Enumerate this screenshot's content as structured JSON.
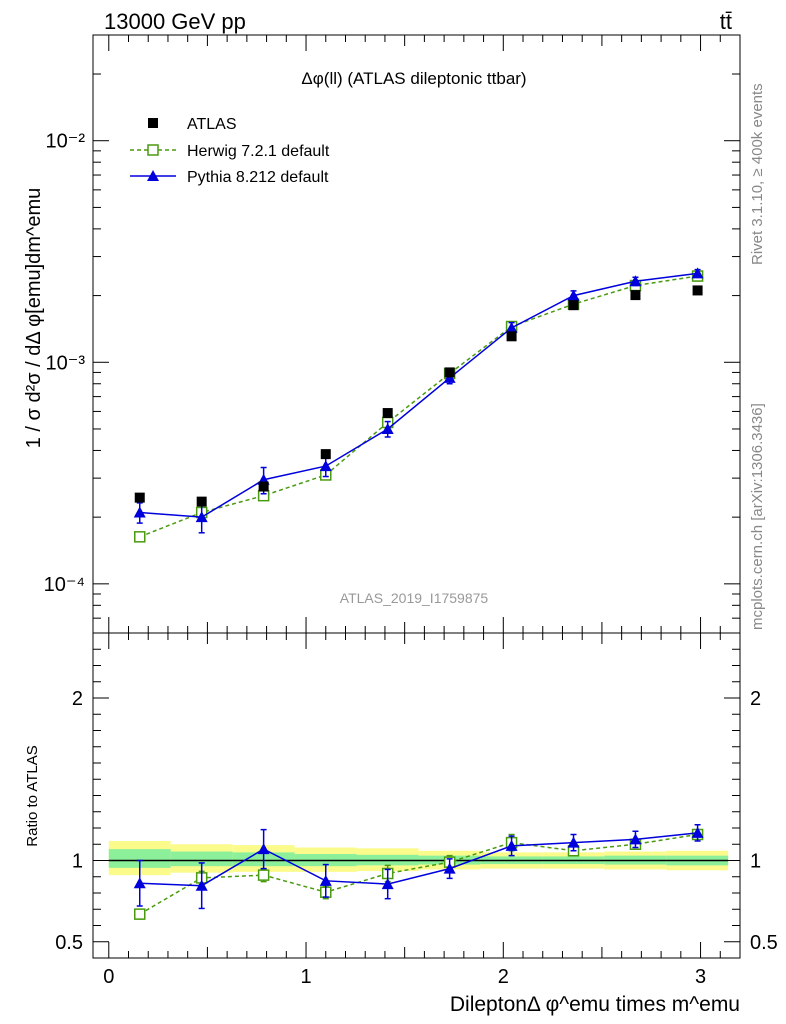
{
  "header": {
    "left": "13000 GeV pp",
    "right": "tt̄"
  },
  "side_labels": {
    "rivet": "Rivet 3.1.10, ≥ 400k events",
    "mcplots": "mcplots.cern.ch [arXiv:1306.3436]"
  },
  "chart_data": [
    {
      "type": "scatter",
      "panel": "main",
      "title": "Δφ(ll) (ATLAS dileptonic ttbar)",
      "ylabel": "1 / σ  d²σ / dΔ φ[emu]dm^emu",
      "yscale": "log",
      "ylim": [
        6e-05,
        0.03
      ],
      "xlim": [
        -0.08,
        3.2
      ],
      "y_tick_labels": [
        "10⁻⁴",
        "10⁻³",
        "10⁻²"
      ],
      "watermark": "ATLAS_2019_I1759875",
      "legend_position": "top-left",
      "x": [
        0.157,
        0.471,
        0.785,
        1.1,
        1.414,
        1.728,
        2.042,
        2.356,
        2.67,
        2.985
      ],
      "series": [
        {
          "name": "ATLAS",
          "color": "#000000",
          "marker": "filled-square",
          "values": [
            0.000245,
            0.000235,
            0.000275,
            0.000385,
            0.00059,
            0.0009,
            0.00131,
            0.00181,
            0.00201,
            0.00211
          ]
        },
        {
          "name": "Herwig 7.2.1 default",
          "color": "#4a9a0f",
          "marker": "open-square",
          "line": "dashed",
          "values": [
            0.000163,
            0.00021,
            0.00025,
            0.00031,
            0.000535,
            0.00089,
            0.00145,
            0.00183,
            0.00222,
            0.00245
          ],
          "err_low": [
            7e-06,
            9e-06,
            1.1e-05,
            1.4e-05,
            3e-05,
            4.5e-05,
            7e-05,
            9e-05,
            0.00011,
            0.00012
          ],
          "err_high": [
            7e-06,
            9e-06,
            1.1e-05,
            1.4e-05,
            3e-05,
            4.5e-05,
            7e-05,
            9e-05,
            0.00011,
            0.00012
          ]
        },
        {
          "name": "Pythia 8.212 default",
          "color": "#0000dd",
          "marker": "filled-triangle",
          "line": "solid",
          "values": [
            0.00021,
            0.0002,
            0.000295,
            0.00034,
            0.0005,
            0.00085,
            0.00143,
            0.002,
            0.00232,
            0.00252
          ],
          "err_low": [
            2.2e-05,
            3e-05,
            4e-05,
            3.5e-05,
            4e-05,
            5e-05,
            8e-05,
            0.0001,
            0.0001,
            0.0001
          ],
          "err_high": [
            2.2e-05,
            3e-05,
            4e-05,
            3.5e-05,
            4e-05,
            5e-05,
            8e-05,
            0.0001,
            0.0001,
            0.0001
          ]
        }
      ]
    },
    {
      "type": "scatter",
      "panel": "ratio",
      "ylabel": "Ratio to ATLAS",
      "xlabel": "DileptonΔ φ^emu times m^emu",
      "ylim": [
        0.4,
        2.4
      ],
      "xlim": [
        -0.08,
        3.2
      ],
      "x_tick_labels": [
        "0",
        "1",
        "2",
        "3"
      ],
      "y_tick_labels": [
        "0.5",
        "1",
        "2"
      ],
      "reference_line": 1.0,
      "bands": [
        {
          "x0": 0.0,
          "x1": 0.314,
          "yellow": [
            0.91,
            1.12
          ],
          "green": [
            0.955,
            1.07
          ]
        },
        {
          "x0": 0.314,
          "x1": 0.628,
          "yellow": [
            0.925,
            1.1
          ],
          "green": [
            0.965,
            1.055
          ]
        },
        {
          "x0": 0.628,
          "x1": 0.942,
          "yellow": [
            0.93,
            1.095
          ],
          "green": [
            0.965,
            1.05
          ]
        },
        {
          "x0": 0.942,
          "x1": 1.256,
          "yellow": [
            0.93,
            1.08
          ],
          "green": [
            0.965,
            1.04
          ]
        },
        {
          "x0": 1.256,
          "x1": 1.57,
          "yellow": [
            0.935,
            1.075
          ],
          "green": [
            0.97,
            1.035
          ]
        },
        {
          "x0": 1.57,
          "x1": 1.884,
          "yellow": [
            0.945,
            1.06
          ],
          "green": [
            0.975,
            1.03
          ]
        },
        {
          "x0": 1.884,
          "x1": 2.198,
          "yellow": [
            0.95,
            1.05
          ],
          "green": [
            0.978,
            1.025
          ]
        },
        {
          "x0": 2.198,
          "x1": 2.512,
          "yellow": [
            0.95,
            1.05
          ],
          "green": [
            0.978,
            1.025
          ]
        },
        {
          "x0": 2.512,
          "x1": 2.826,
          "yellow": [
            0.945,
            1.055
          ],
          "green": [
            0.975,
            1.03
          ]
        },
        {
          "x0": 2.826,
          "x1": 3.14,
          "yellow": [
            0.94,
            1.06
          ],
          "green": [
            0.97,
            1.03
          ]
        }
      ],
      "x": [
        0.157,
        0.471,
        0.785,
        1.1,
        1.414,
        1.728,
        2.042,
        2.356,
        2.67,
        2.985
      ],
      "series": [
        {
          "name": "Herwig 7.2.1 default",
          "color": "#4a9a0f",
          "marker": "open-square",
          "line": "dashed",
          "values": [
            0.67,
            0.893,
            0.91,
            0.805,
            0.92,
            0.99,
            1.11,
            1.06,
            1.1,
            1.16
          ],
          "err_low": [
            0.03,
            0.04,
            0.04,
            0.04,
            0.05,
            0.04,
            0.05,
            0.03,
            0.03,
            0.03
          ],
          "err_high": [
            0.03,
            0.04,
            0.04,
            0.04,
            0.05,
            0.04,
            0.05,
            0.03,
            0.03,
            0.03
          ]
        },
        {
          "name": "Pythia 8.212 default",
          "color": "#0000dd",
          "marker": "filled-triangle",
          "line": "solid",
          "values": [
            0.86,
            0.845,
            1.07,
            0.875,
            0.855,
            0.95,
            1.09,
            1.11,
            1.13,
            1.17
          ],
          "err_low": [
            0.14,
            0.14,
            0.12,
            0.1,
            0.09,
            0.06,
            0.06,
            0.05,
            0.05,
            0.05
          ],
          "err_high": [
            0.14,
            0.14,
            0.12,
            0.1,
            0.09,
            0.06,
            0.06,
            0.05,
            0.05,
            0.05
          ]
        }
      ]
    }
  ]
}
